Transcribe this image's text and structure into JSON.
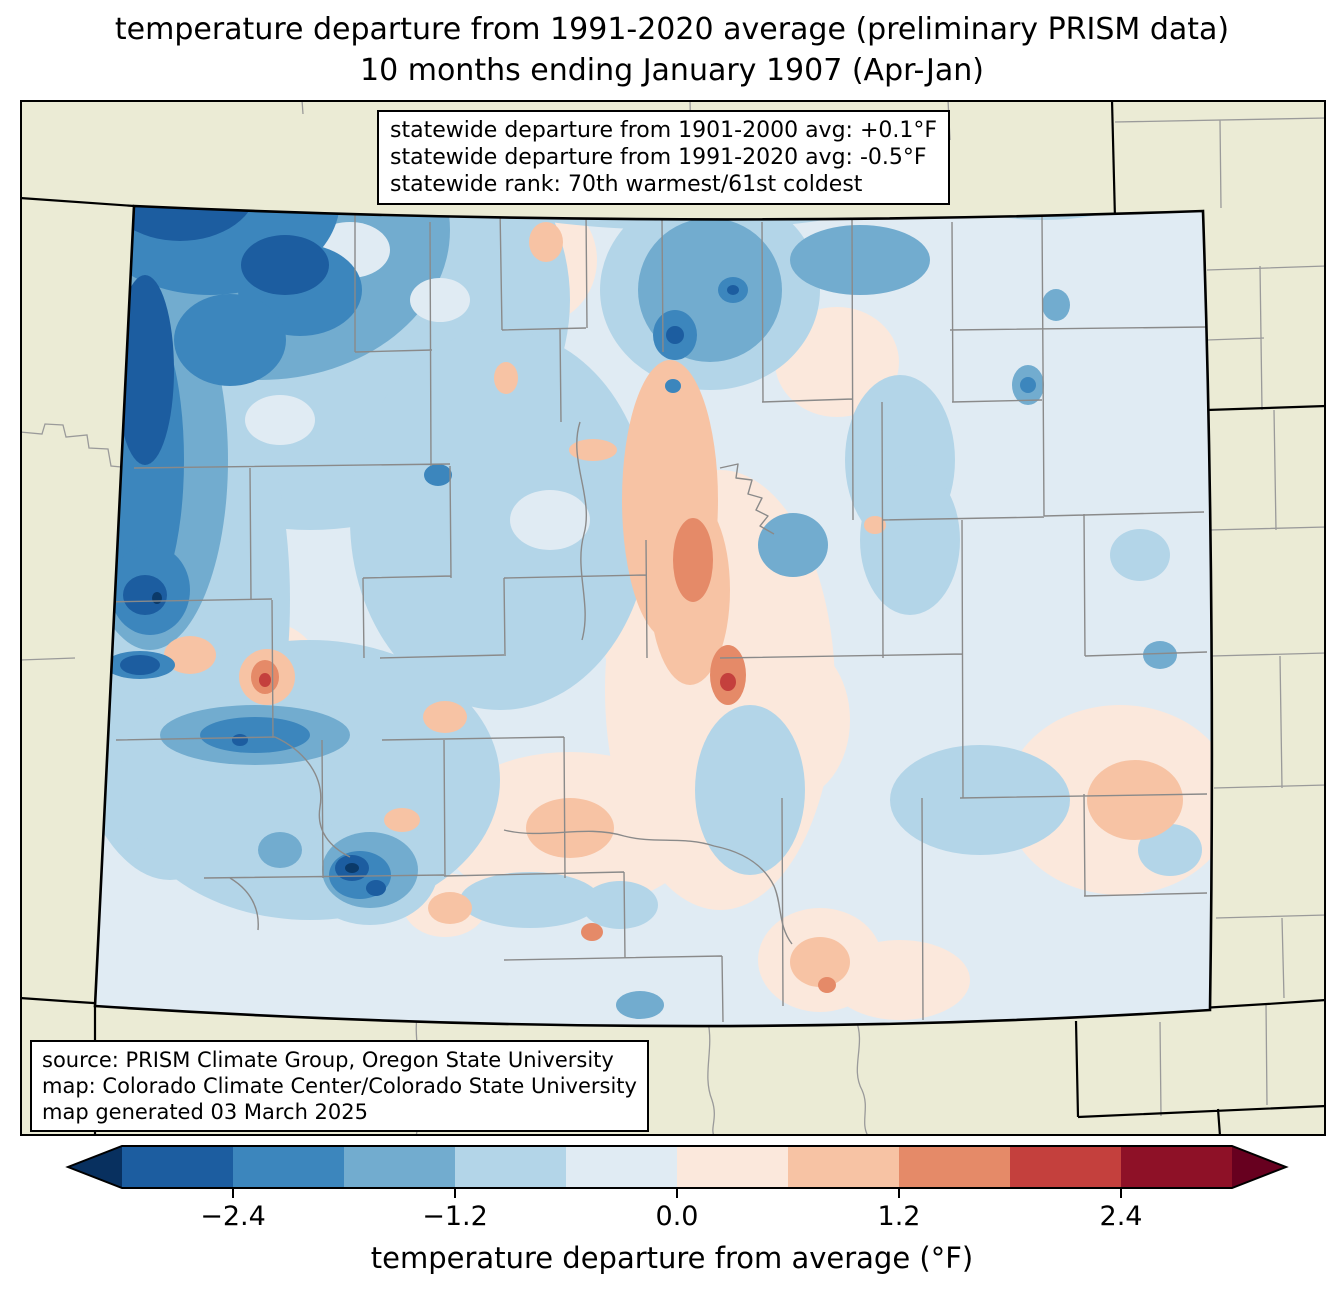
{
  "title": {
    "line1": "temperature departure from 1991-2020 average (preliminary PRISM data)",
    "line2": "10 months ending January 1907 (Apr-Jan)"
  },
  "stats_box": {
    "lines": [
      "statewide departure from 1901-2000 avg: +0.1°F",
      "statewide departure from 1991-2020 avg: -0.5°F",
      "statewide rank: 70th warmest/61st coldest"
    ]
  },
  "source_box": {
    "lines": [
      "source: PRISM Climate Group, Oregon State University",
      "map: Colorado Climate Center/Colorado State University",
      "map generated 03 March 2025"
    ]
  },
  "colorbar": {
    "label": "temperature departure from average (°F)",
    "ticks": [
      "−2.4",
      "−1.2",
      "0.0",
      "1.2",
      "2.4"
    ],
    "tick_values": [
      -2.4,
      -1.2,
      0.0,
      1.2,
      2.4
    ],
    "range_f": [
      -3.0,
      3.0
    ],
    "n_segments": 10,
    "segment_colors": [
      "#1c5da0",
      "#3c86bd",
      "#72accf",
      "#b3d5e8",
      "#e0ebf3",
      "#fbe8dc",
      "#f7c3a4",
      "#e58a68",
      "#c4403d",
      "#8e1127"
    ],
    "under_color": "#08305f",
    "over_color": "#67001f",
    "outline_color": "#000000"
  },
  "map": {
    "region": "Colorado",
    "outside_state_bg": "#ebebd5",
    "state_border_color": "#000000",
    "county_line_color": "#8a8a8a",
    "neighbor_county_line_color": "#9a9a9a",
    "base_fill": "#e0ebf3"
  }
}
